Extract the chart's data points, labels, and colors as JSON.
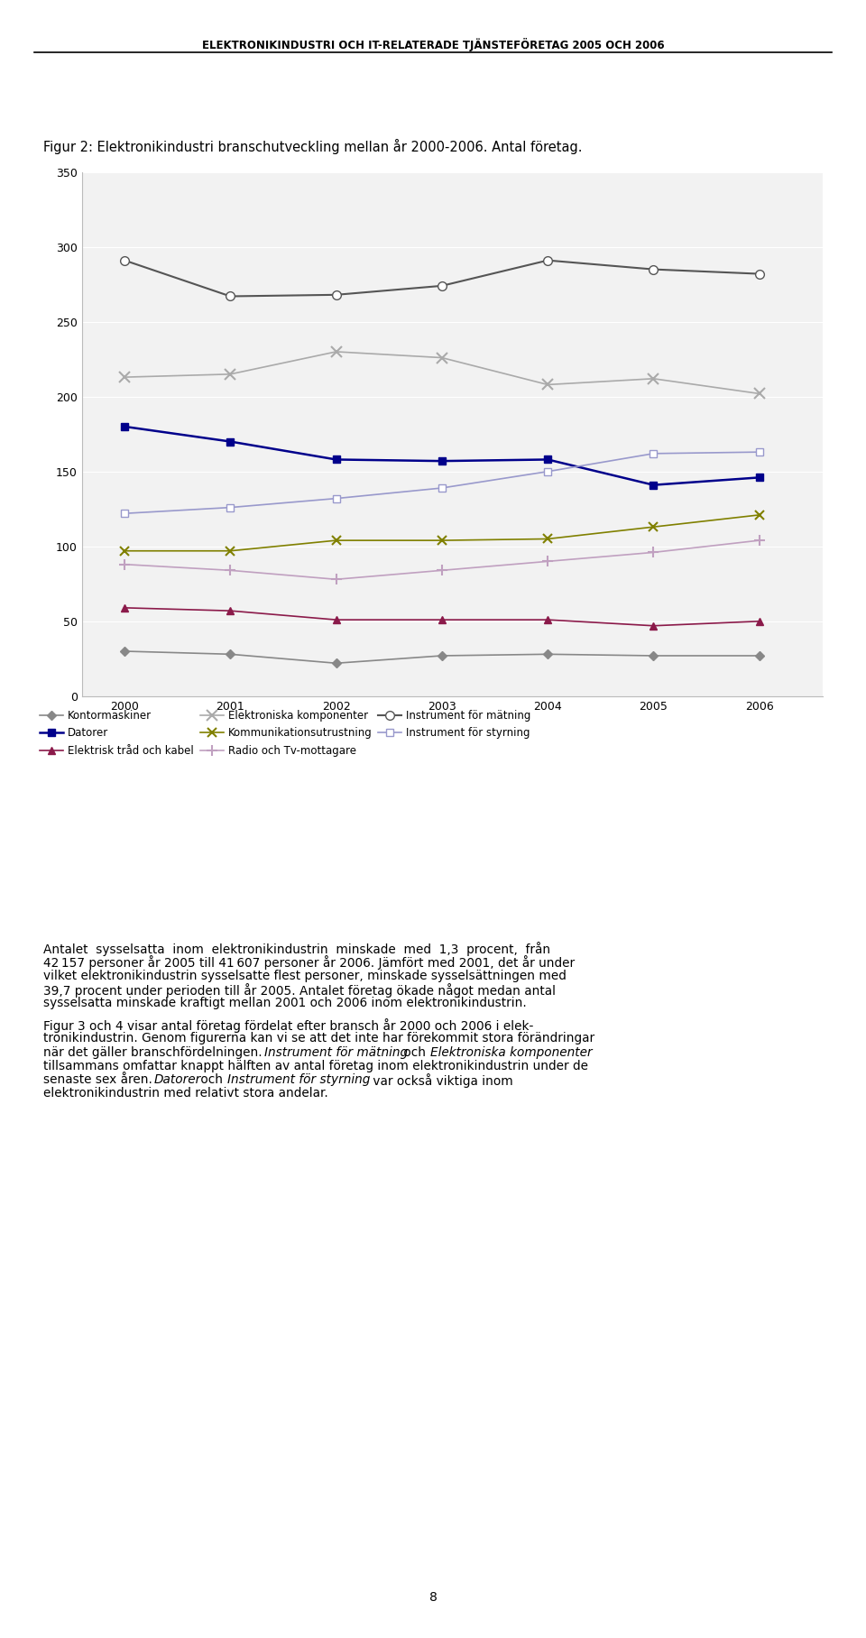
{
  "title_header": "ELEKTRONIKINDUSTRI OCH IT-RELATERADE TJÄNSTEFÖRETAG 2005 OCH 2006",
  "fig_title": "Figur 2: Elektronikindustri branschutveckling mellan år 2000-2006. Antal företag.",
  "years": [
    2000,
    2001,
    2002,
    2003,
    2004,
    2005,
    2006
  ],
  "series": [
    {
      "name": "Kontormaskiner",
      "values": [
        30,
        28,
        22,
        27,
        28,
        27,
        27
      ],
      "color": "#888888",
      "marker": "D",
      "markersize": 5,
      "linewidth": 1.2,
      "markerfacecolor": "#888888"
    },
    {
      "name": "Datorer",
      "values": [
        180,
        170,
        158,
        157,
        158,
        141,
        146
      ],
      "color": "#00008B",
      "marker": "s",
      "markersize": 6,
      "linewidth": 1.8,
      "markerfacecolor": "#00008B"
    },
    {
      "name": "Elektrisk tråd och kabel",
      "values": [
        59,
        57,
        51,
        51,
        51,
        47,
        50
      ],
      "color": "#8B1A4A",
      "marker": "^",
      "markersize": 6,
      "linewidth": 1.2,
      "markerfacecolor": "#8B1A4A"
    },
    {
      "name": "Elektroniska komponenter",
      "values": [
        213,
        215,
        230,
        226,
        208,
        212,
        202
      ],
      "color": "#AAAAAA",
      "marker": "x",
      "markersize": 8,
      "linewidth": 1.2,
      "markerfacecolor": "#AAAAAA",
      "markeredgewidth": 1.5
    },
    {
      "name": "Kommunikationsutrustning",
      "values": [
        97,
        97,
        104,
        104,
        105,
        113,
        121
      ],
      "color": "#808000",
      "marker": "x",
      "markersize": 7,
      "linewidth": 1.2,
      "markerfacecolor": "#808000",
      "markeredgewidth": 1.5
    },
    {
      "name": "Radio och Tv-mottagare",
      "values": [
        88,
        84,
        78,
        84,
        90,
        96,
        104
      ],
      "color": "#C0A0C0",
      "marker": "+",
      "markersize": 8,
      "linewidth": 1.2,
      "markerfacecolor": "#C0A0C0",
      "markeredgewidth": 1.5
    },
    {
      "name": "Instrument för mätning",
      "values": [
        291,
        267,
        268,
        274,
        291,
        285,
        282
      ],
      "color": "#555555",
      "marker": "o",
      "markersize": 7,
      "linewidth": 1.5,
      "markerfacecolor": "white"
    },
    {
      "name": "Instrument för styrning",
      "values": [
        122,
        126,
        132,
        139,
        150,
        162,
        163
      ],
      "color": "#9999CC",
      "marker": "s",
      "markersize": 6,
      "linewidth": 1.2,
      "markerfacecolor": "white"
    }
  ],
  "legend_order": [
    "Kontormaskiner",
    "Datorer",
    "Elektrisk tråd och kabel",
    "Elektroniska komponenter",
    "Kommunikationsutrustning",
    "Radio och Tv-mottagare",
    "Instrument för mätning",
    "Instrument för styrning"
  ],
  "ylim": [
    0,
    350
  ],
  "yticks": [
    0,
    50,
    100,
    150,
    200,
    250,
    300,
    350
  ],
  "background_color": "#ffffff",
  "plot_bg_color": "#f2f2f2",
  "page_number": "8"
}
